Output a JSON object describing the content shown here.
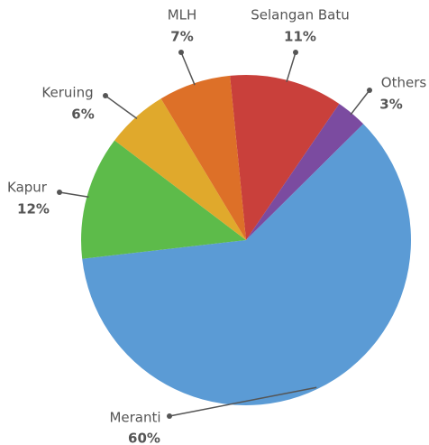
{
  "chart_data": {
    "type": "pie",
    "categories": [
      "Selangan Batu",
      "Others",
      "Meranti",
      "Kapur",
      "Keruing",
      "MLH"
    ],
    "values": [
      11,
      3,
      60,
      12,
      6,
      7
    ],
    "value_labels": [
      "11%",
      "3%",
      "60%",
      "12%",
      "6%",
      "7%"
    ],
    "colors": [
      "#c9403b",
      "#7b4ba0",
      "#5b9bd5",
      "#5dbb4a",
      "#e0a92c",
      "#dd7028"
    ]
  }
}
